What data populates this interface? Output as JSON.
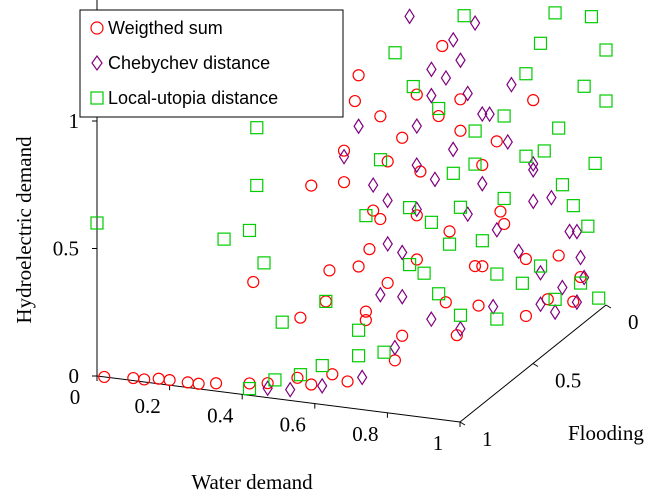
{
  "chart_data": {
    "type": "scatter",
    "projection": "3d",
    "xlabel": "Water demand",
    "ylabel": "Flooding",
    "zlabel": "Hydroelectric demand",
    "x_ticks": [
      "0",
      "0.2",
      "0.4",
      "0.6",
      "0.8",
      "1"
    ],
    "y_ticks": [
      "0",
      "0.5",
      "1"
    ],
    "z_ticks": [
      "0",
      "0.5",
      "1"
    ],
    "xlim": [
      0,
      1
    ],
    "ylim": [
      0,
      1
    ],
    "zlim": [
      0,
      1.3
    ],
    "legend_position": "top-left",
    "series": [
      {
        "name": "Weigthed sum",
        "marker": "circle",
        "color": "#ff0000",
        "points": [
          [
            0.02,
            0.0,
            0.0
          ],
          [
            0.1,
            0.0,
            0.01
          ],
          [
            0.13,
            0.0,
            0.01
          ],
          [
            0.17,
            0.0,
            0.02
          ],
          [
            0.2,
            0.0,
            0.02
          ],
          [
            0.25,
            0.0,
            0.02
          ],
          [
            0.28,
            0.0,
            0.02
          ],
          [
            0.32,
            0.02,
            0.02
          ],
          [
            0.4,
            0.05,
            0.02
          ],
          [
            0.45,
            0.05,
            0.03
          ],
          [
            0.52,
            0.08,
            0.05
          ],
          [
            0.55,
            0.1,
            0.02
          ],
          [
            0.6,
            0.12,
            0.06
          ],
          [
            0.65,
            0.1,
            0.05
          ],
          [
            0.7,
            0.3,
            0.05
          ],
          [
            0.35,
            0.2,
            0.34
          ],
          [
            0.5,
            0.15,
            0.25
          ],
          [
            0.55,
            0.2,
            0.3
          ],
          [
            0.6,
            0.3,
            0.4
          ],
          [
            0.62,
            0.35,
            0.6
          ],
          [
            0.58,
            0.25,
            0.75
          ],
          [
            0.6,
            0.2,
            0.9
          ],
          [
            0.66,
            0.3,
            1.0
          ],
          [
            0.72,
            0.4,
            1.05
          ],
          [
            0.75,
            0.5,
            1.2
          ],
          [
            0.7,
            0.45,
            0.55
          ],
          [
            0.68,
            0.5,
            0.35
          ],
          [
            0.75,
            0.55,
            0.45
          ],
          [
            0.8,
            0.6,
            0.3
          ],
          [
            0.85,
            0.65,
            0.5
          ],
          [
            0.82,
            0.6,
            0.7
          ],
          [
            0.78,
            0.55,
            0.85
          ],
          [
            0.7,
            0.2,
            0.65
          ],
          [
            0.65,
            0.25,
            0.5
          ],
          [
            0.6,
            0.35,
            0.2
          ],
          [
            0.72,
            0.3,
            0.15
          ],
          [
            0.8,
            0.4,
            0.25
          ],
          [
            0.85,
            0.5,
            0.2
          ],
          [
            0.9,
            0.7,
            0.3
          ],
          [
            0.92,
            0.8,
            0.1
          ],
          [
            0.88,
            0.75,
            0.05
          ],
          [
            0.95,
            0.9,
            0.05
          ],
          [
            0.75,
            0.6,
            0.02
          ],
          [
            0.68,
            0.3,
            0.35
          ],
          [
            0.7,
            0.35,
            0.9
          ],
          [
            0.76,
            0.45,
            0.95
          ],
          [
            0.8,
            0.5,
            1.0
          ],
          [
            0.73,
            0.4,
            0.75
          ],
          [
            0.66,
            0.35,
            0.8
          ],
          [
            0.63,
            0.2,
            1.1
          ],
          [
            0.6,
            0.3,
            1.15
          ],
          [
            0.55,
            0.1,
            0.8
          ],
          [
            0.58,
            0.15,
            0.45
          ],
          [
            0.64,
            0.25,
            0.22
          ],
          [
            0.78,
            0.7,
            0.25
          ],
          [
            0.82,
            0.75,
            0.4
          ],
          [
            0.86,
            0.6,
            0.8
          ],
          [
            0.9,
            0.75,
            0.9
          ],
          [
            0.93,
            0.85,
            0.25
          ],
          [
            0.97,
            0.9,
            0.15
          ]
        ]
      },
      {
        "name": "Chebychev distance",
        "marker": "diamond",
        "color": "#7f007f",
        "points": [
          [
            0.45,
            0.05,
            0.01
          ],
          [
            0.5,
            0.08,
            0.0
          ],
          [
            0.58,
            0.1,
            0.02
          ],
          [
            0.65,
            0.2,
            0.02
          ],
          [
            0.7,
            0.3,
            0.1
          ],
          [
            0.66,
            0.3,
            0.3
          ],
          [
            0.7,
            0.35,
            0.45
          ],
          [
            0.72,
            0.4,
            0.6
          ],
          [
            0.75,
            0.45,
            0.7
          ],
          [
            0.78,
            0.5,
            0.8
          ],
          [
            0.7,
            0.45,
            0.9
          ],
          [
            0.72,
            0.5,
            1.0
          ],
          [
            0.74,
            0.55,
            1.05
          ],
          [
            0.76,
            0.6,
            1.1
          ],
          [
            0.8,
            0.55,
            1.0
          ],
          [
            0.82,
            0.6,
            0.9
          ],
          [
            0.85,
            0.7,
            0.75
          ],
          [
            0.8,
            0.65,
            0.6
          ],
          [
            0.78,
            0.6,
            0.5
          ],
          [
            0.82,
            0.7,
            0.4
          ],
          [
            0.86,
            0.75,
            0.3
          ],
          [
            0.9,
            0.8,
            0.2
          ],
          [
            0.88,
            0.85,
            0.05
          ],
          [
            0.92,
            0.9,
            0.1
          ],
          [
            0.95,
            0.95,
            0.2
          ],
          [
            0.96,
            0.85,
            0.35
          ],
          [
            0.93,
            0.8,
            0.5
          ],
          [
            0.9,
            0.75,
            0.65
          ],
          [
            0.6,
            0.3,
            0.95
          ],
          [
            0.62,
            0.35,
            0.7
          ],
          [
            0.64,
            0.4,
            0.45
          ],
          [
            0.68,
            0.4,
            0.25
          ],
          [
            0.74,
            0.45,
            0.15
          ],
          [
            0.8,
            0.5,
            0.1
          ],
          [
            0.85,
            0.6,
            0.15
          ],
          [
            0.76,
            0.7,
            1.2
          ],
          [
            0.72,
            0.65,
            1.15
          ],
          [
            0.68,
            0.6,
            1.05
          ],
          [
            0.8,
            0.7,
            0.85
          ],
          [
            0.84,
            0.75,
            0.95
          ],
          [
            0.88,
            0.8,
            0.6
          ],
          [
            0.66,
            0.5,
            1.3
          ],
          [
            0.74,
            0.35,
            0.8
          ],
          [
            0.7,
            0.25,
            0.7
          ],
          [
            0.86,
            0.85,
            0.45
          ],
          [
            0.94,
            0.95,
            0.3
          ],
          [
            0.98,
            0.9,
            0.15
          ],
          [
            0.9,
            0.9,
            0.0
          ],
          [
            0.96,
            0.9,
            0.05
          ],
          [
            0.58,
            0.25,
            0.85
          ]
        ]
      },
      {
        "name": "Local-utopia distance",
        "marker": "square",
        "color": "#00cc00",
        "points": [
          [
            0.0,
            0.0,
            0.6
          ],
          [
            0.35,
            0.0,
            0.6
          ],
          [
            0.4,
            0.05,
            0.62
          ],
          [
            0.42,
            0.05,
            0.8
          ],
          [
            0.4,
            0.1,
            1.0
          ],
          [
            0.44,
            0.05,
            0.5
          ],
          [
            0.47,
            0.1,
            0.25
          ],
          [
            0.55,
            0.2,
            0.3
          ],
          [
            0.6,
            0.3,
            0.15
          ],
          [
            0.48,
            0.2,
            0.0
          ],
          [
            0.52,
            0.25,
            0.02
          ],
          [
            0.6,
            0.3,
            0.05
          ],
          [
            0.65,
            0.35,
            0.05
          ],
          [
            0.4,
            0.05,
            0.0
          ],
          [
            0.45,
            0.1,
            0.02
          ],
          [
            0.7,
            0.5,
            0.3
          ],
          [
            0.75,
            0.55,
            0.4
          ],
          [
            0.78,
            0.55,
            0.55
          ],
          [
            0.8,
            0.6,
            0.7
          ],
          [
            0.84,
            0.7,
            0.85
          ],
          [
            0.88,
            0.75,
            1.0
          ],
          [
            0.9,
            0.8,
            1.1
          ],
          [
            0.92,
            0.85,
            1.2
          ],
          [
            0.95,
            0.9,
            1.3
          ],
          [
            0.98,
            0.95,
            1.15
          ],
          [
            0.85,
            0.95,
            0.6
          ],
          [
            0.88,
            1.0,
            0.45
          ],
          [
            0.95,
            1.0,
            0.3
          ],
          [
            1.0,
            1.0,
            0.8
          ],
          [
            0.98,
            0.9,
            0.9
          ],
          [
            0.93,
            0.85,
            0.75
          ],
          [
            0.86,
            0.8,
            0.65
          ],
          [
            0.82,
            0.75,
            0.5
          ],
          [
            0.78,
            0.7,
            0.35
          ],
          [
            0.8,
            0.75,
            0.2
          ],
          [
            0.85,
            0.8,
            0.15
          ],
          [
            0.9,
            0.9,
            0.05
          ],
          [
            0.95,
            0.95,
            0.1
          ],
          [
            1.0,
            0.95,
            0.05
          ],
          [
            0.7,
            0.6,
            0.9
          ],
          [
            0.65,
            0.55,
            1.0
          ],
          [
            0.62,
            0.5,
            1.15
          ],
          [
            0.75,
            0.65,
            1.25
          ],
          [
            0.78,
            0.75,
            1.3
          ],
          [
            0.83,
            0.85,
            1.3
          ],
          [
            0.9,
            0.95,
            1.25
          ],
          [
            0.6,
            0.45,
            0.75
          ],
          [
            0.66,
            0.5,
            0.55
          ],
          [
            0.72,
            0.55,
            0.2
          ],
          [
            0.76,
            0.6,
            0.1
          ],
          [
            0.82,
            0.7,
            0.05
          ],
          [
            0.88,
            0.85,
            0.2
          ],
          [
            0.93,
            0.95,
            0.4
          ],
          [
            0.97,
            1.0,
            0.55
          ],
          [
            1.0,
            1.0,
            1.0
          ],
          [
            0.74,
            0.75,
            0.75
          ],
          [
            0.7,
            0.7,
            0.6
          ],
          [
            0.68,
            0.6,
            0.45
          ],
          [
            0.64,
            0.55,
            0.3
          ],
          [
            0.58,
            0.4,
            0.55
          ]
        ]
      }
    ]
  }
}
